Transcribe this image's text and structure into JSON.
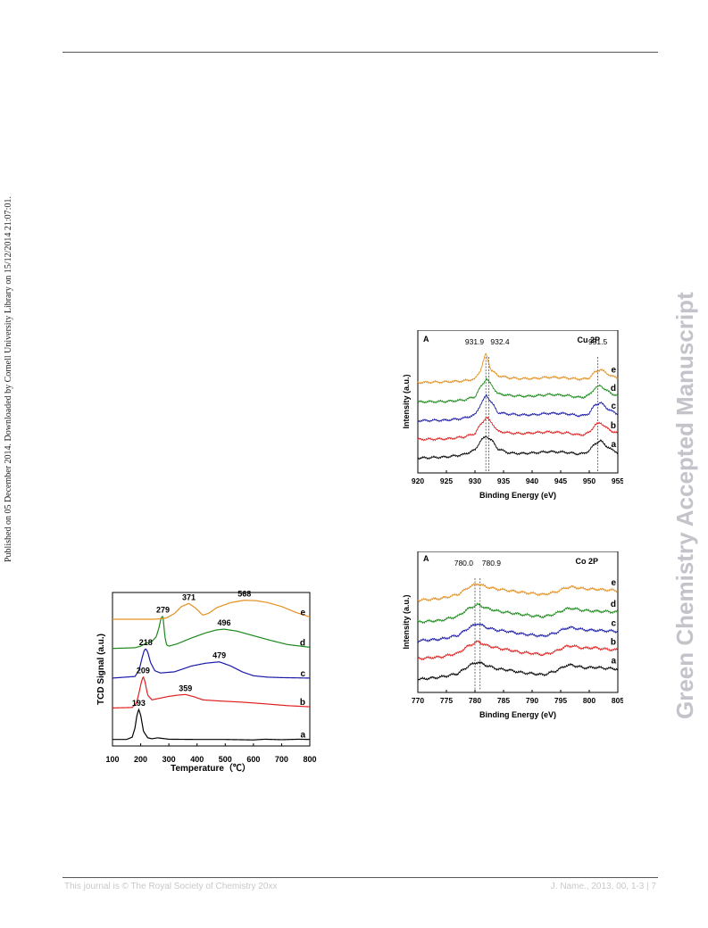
{
  "page": {
    "side_note": "Published on 05 December 2014. Downloaded by Cornell University Library on 15/12/2014 21:07:01.",
    "watermark": "Green Chemistry Accepted Manuscript",
    "footer_left": "This journal is © The Royal Society of Chemistry 20xx",
    "footer_right": "J. Name., 2013, 00, 1-3 | 7"
  },
  "chart_data": [
    {
      "id": "tpr",
      "type": "line",
      "title": "",
      "xlabel": "Temperature（℃）",
      "ylabel": "TCD Signal (a.u.)",
      "xlim": [
        100,
        800
      ],
      "xticks": [
        "100",
        "200",
        "300",
        "400",
        "500",
        "600",
        "700",
        "800"
      ],
      "panel_label": "",
      "series": [
        {
          "name": "a",
          "color": "#000000",
          "x": [
            100,
            150,
            170,
            180,
            186,
            193,
            200,
            210,
            225,
            240,
            260,
            300,
            400,
            500,
            600,
            640,
            700,
            760,
            800
          ],
          "y": [
            0.05,
            0.05,
            0.15,
            0.55,
            1.05,
            1.35,
            1.1,
            0.4,
            0.12,
            0.08,
            0.12,
            0.06,
            0.05,
            0.05,
            0.03,
            0.06,
            0.04,
            0.06,
            0.05
          ]
        },
        {
          "name": "b",
          "color": "#e02020",
          "x": [
            100,
            170,
            185,
            195,
            203,
            209,
            215,
            225,
            240,
            260,
            300,
            330,
            359,
            390,
            420,
            480,
            560,
            640,
            720,
            800
          ],
          "y": [
            0.1,
            0.12,
            0.3,
            0.8,
            1.25,
            1.45,
            1.25,
            0.65,
            0.45,
            0.5,
            0.6,
            0.65,
            0.68,
            0.58,
            0.45,
            0.4,
            0.35,
            0.28,
            0.2,
            0.15
          ]
        },
        {
          "name": "c",
          "color": "#1a1aa8",
          "x": [
            100,
            180,
            195,
            205,
            212,
            218,
            225,
            235,
            250,
            270,
            320,
            380,
            430,
            479,
            520,
            560,
            600,
            650,
            700,
            800
          ],
          "y": [
            0.08,
            0.15,
            0.45,
            0.95,
            1.25,
            1.35,
            1.2,
            0.75,
            0.4,
            0.3,
            0.35,
            0.6,
            0.72,
            0.78,
            0.6,
            0.35,
            0.18,
            0.12,
            0.1,
            0.08
          ]
        },
        {
          "name": "d",
          "color": "#1a8a1a",
          "x": [
            100,
            180,
            200,
            220,
            240,
            255,
            265,
            272,
            279,
            286,
            292,
            300,
            330,
            380,
            430,
            470,
            496,
            540,
            600,
            660,
            720,
            800
          ],
          "y": [
            0.05,
            0.08,
            0.15,
            0.28,
            0.35,
            0.55,
            0.95,
            1.35,
            1.45,
            0.55,
            0.2,
            0.15,
            0.25,
            0.5,
            0.72,
            0.85,
            0.88,
            0.8,
            0.6,
            0.4,
            0.22,
            0.1
          ]
        },
        {
          "name": "e",
          "color": "#e39020",
          "x": [
            100,
            250,
            290,
            320,
            345,
            371,
            395,
            420,
            440,
            470,
            520,
            568,
            610,
            650,
            700,
            750,
            800
          ],
          "y": [
            0.0,
            0.0,
            0.05,
            0.25,
            0.55,
            0.68,
            0.48,
            0.18,
            0.25,
            0.5,
            0.72,
            0.82,
            0.8,
            0.72,
            0.55,
            0.3,
            0.1
          ]
        }
      ],
      "annotations": [
        {
          "text": "193",
          "series": "a",
          "x": 193
        },
        {
          "text": "209",
          "series": "b",
          "x": 209
        },
        {
          "text": "359",
          "series": "b",
          "x": 359
        },
        {
          "text": "218",
          "series": "c",
          "x": 218
        },
        {
          "text": "479",
          "series": "c",
          "x": 479
        },
        {
          "text": "279",
          "series": "d",
          "x": 279
        },
        {
          "text": "496",
          "series": "d",
          "x": 496
        },
        {
          "text": "371",
          "series": "e",
          "x": 371
        },
        {
          "text": "568",
          "series": "e",
          "x": 568
        }
      ],
      "reference_lines": []
    },
    {
      "id": "cu2p",
      "type": "line",
      "title": "",
      "xlabel": "Binding Energy (eV)",
      "ylabel": "Intensity (a.u.)",
      "xlim": [
        920,
        955
      ],
      "xticks": [
        "920",
        "925",
        "930",
        "935",
        "940",
        "945",
        "950",
        "955"
      ],
      "panel_label": "A",
      "corner_label": "Cu 2P",
      "series": [
        {
          "name": "a",
          "color": "#000000",
          "x": [
            920,
            925,
            928,
            930,
            931,
            932,
            933,
            934,
            936,
            938,
            940,
            943,
            946,
            948,
            949,
            950,
            951,
            952,
            953,
            954,
            955
          ],
          "y": [
            0.1,
            0.15,
            0.25,
            0.45,
            0.85,
            1.05,
            0.85,
            0.5,
            0.32,
            0.3,
            0.32,
            0.38,
            0.35,
            0.28,
            0.3,
            0.42,
            0.72,
            0.85,
            0.62,
            0.45,
            0.35
          ]
        },
        {
          "name": "b",
          "color": "#e02020",
          "x": [
            920,
            925,
            928,
            930,
            931,
            932,
            933,
            934,
            936,
            938,
            940,
            943,
            946,
            948,
            949,
            950,
            951,
            952,
            953,
            954,
            955
          ],
          "y": [
            0.1,
            0.12,
            0.2,
            0.35,
            0.75,
            1.05,
            0.8,
            0.45,
            0.38,
            0.35,
            0.38,
            0.42,
            0.38,
            0.3,
            0.3,
            0.4,
            0.72,
            0.82,
            0.6,
            0.45,
            0.35
          ]
        },
        {
          "name": "c",
          "color": "#1a1aa8",
          "x": [
            920,
            925,
            928,
            930,
            931,
            932,
            933,
            934,
            936,
            938,
            940,
            943,
            946,
            948,
            949,
            950,
            951,
            952,
            953,
            954,
            955
          ],
          "y": [
            0.1,
            0.12,
            0.2,
            0.35,
            0.8,
            1.2,
            0.85,
            0.45,
            0.38,
            0.35,
            0.35,
            0.42,
            0.4,
            0.32,
            0.32,
            0.42,
            0.78,
            0.88,
            0.65,
            0.5,
            0.38
          ]
        },
        {
          "name": "d",
          "color": "#1a8a1a",
          "x": [
            920,
            925,
            928,
            930,
            931,
            932,
            933,
            934,
            936,
            938,
            940,
            943,
            946,
            948,
            949,
            950,
            951,
            952,
            953,
            954,
            955
          ],
          "y": [
            0.1,
            0.12,
            0.18,
            0.32,
            0.75,
            1.1,
            0.8,
            0.45,
            0.38,
            0.35,
            0.35,
            0.42,
            0.38,
            0.3,
            0.3,
            0.4,
            0.7,
            0.8,
            0.6,
            0.45,
            0.35
          ]
        },
        {
          "name": "e",
          "color": "#e39020",
          "x": [
            920,
            925,
            928,
            930,
            931,
            931.9,
            932.8,
            934,
            936,
            938,
            940,
            943,
            946,
            948,
            949,
            950,
            951,
            952,
            953,
            954,
            955
          ],
          "y": [
            0.05,
            0.08,
            0.12,
            0.2,
            0.6,
            1.3,
            0.6,
            0.35,
            0.25,
            0.22,
            0.22,
            0.28,
            0.25,
            0.2,
            0.2,
            0.25,
            0.5,
            0.62,
            0.45,
            0.32,
            0.25
          ]
        }
      ],
      "annotations": [
        {
          "text": "931.9",
          "x": 931.9
        },
        {
          "text": "932.4",
          "x": 932.4
        },
        {
          "text": "951.5",
          "x": 951.5
        }
      ],
      "reference_lines": [
        931.9,
        932.4,
        951.5
      ]
    },
    {
      "id": "co2p",
      "type": "line",
      "title": "",
      "xlabel": "Binding Energy (eV)",
      "ylabel": "Intensity (a.u.)",
      "xlim": [
        770,
        805
      ],
      "xticks": [
        "770",
        "775",
        "780",
        "785",
        "790",
        "795",
        "800",
        "805"
      ],
      "panel_label": "A",
      "corner_label": "Co 2P",
      "series": [
        {
          "name": "a",
          "color": "#000000",
          "x": [
            770,
            774,
            777,
            779,
            780.5,
            782,
            784,
            786,
            788,
            790,
            792,
            794,
            796,
            797,
            799,
            801,
            803,
            805
          ],
          "y": [
            0.1,
            0.2,
            0.35,
            0.7,
            0.85,
            0.7,
            0.55,
            0.5,
            0.4,
            0.35,
            0.3,
            0.45,
            0.7,
            0.72,
            0.6,
            0.62,
            0.58,
            0.55
          ]
        },
        {
          "name": "b",
          "color": "#e02020",
          "x": [
            770,
            774,
            777,
            779,
            780.5,
            782,
            784,
            786,
            788,
            790,
            792,
            794,
            796,
            797,
            799,
            801,
            803,
            805
          ],
          "y": [
            0.15,
            0.22,
            0.38,
            0.72,
            0.88,
            0.72,
            0.6,
            0.52,
            0.42,
            0.38,
            0.32,
            0.45,
            0.68,
            0.7,
            0.6,
            0.62,
            0.55,
            0.52
          ]
        },
        {
          "name": "c",
          "color": "#1a1aa8",
          "x": [
            770,
            774,
            777,
            779,
            780.5,
            782,
            784,
            786,
            788,
            790,
            792,
            794,
            796,
            797,
            799,
            801,
            803,
            805
          ],
          "y": [
            0.15,
            0.22,
            0.38,
            0.72,
            0.9,
            0.72,
            0.6,
            0.55,
            0.45,
            0.4,
            0.35,
            0.48,
            0.7,
            0.72,
            0.62,
            0.6,
            0.58,
            0.55
          ]
        },
        {
          "name": "d",
          "color": "#1a8a1a",
          "x": [
            770,
            774,
            777,
            779,
            780.5,
            782,
            784,
            786,
            788,
            790,
            792,
            794,
            796,
            797,
            799,
            801,
            803,
            805
          ],
          "y": [
            0.15,
            0.22,
            0.4,
            0.75,
            0.9,
            0.75,
            0.62,
            0.55,
            0.48,
            0.42,
            0.38,
            0.5,
            0.72,
            0.74,
            0.65,
            0.62,
            0.6,
            0.58
          ]
        },
        {
          "name": "e",
          "color": "#e39020",
          "x": [
            770,
            774,
            777,
            779,
            780.5,
            782,
            784,
            786,
            788,
            790,
            792,
            794,
            796,
            797,
            799,
            801,
            803,
            805
          ],
          "y": [
            0.2,
            0.28,
            0.45,
            0.78,
            0.92,
            0.78,
            0.68,
            0.62,
            0.55,
            0.5,
            0.45,
            0.55,
            0.75,
            0.78,
            0.7,
            0.68,
            0.65,
            0.62
          ]
        }
      ],
      "annotations": [
        {
          "text": "780.0",
          "x": 780.0
        },
        {
          "text": "780.9",
          "x": 780.9
        }
      ],
      "reference_lines": [
        780.0,
        780.9
      ]
    }
  ]
}
